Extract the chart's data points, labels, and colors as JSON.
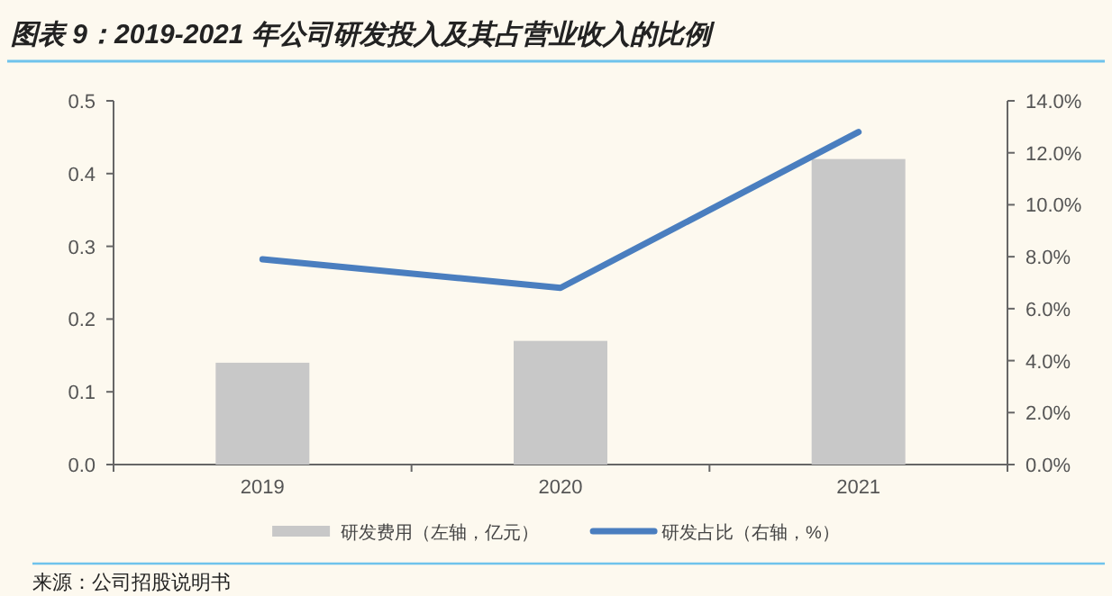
{
  "chart_data": {
    "type": "bar",
    "title": "图表 9：2019-2021 年公司研发投入及其占营业收入的比例",
    "categories": [
      "2019",
      "2020",
      "2021"
    ],
    "series": [
      {
        "name": "研发费用（左轴，亿元）",
        "color": "#c8c8c8",
        "values": [
          0.14,
          0.17,
          0.42
        ]
      },
      {
        "name": "研发占比（右轴，%）",
        "type": "line",
        "axis": "y2",
        "color": "#4a7ebf",
        "values": [
          7.9,
          6.8,
          12.8
        ]
      }
    ],
    "ylim": [
      0,
      0.5
    ],
    "yticks": [
      {
        "value": 0,
        "label": "0.0"
      },
      0.1,
      0.2,
      0.3,
      0.4,
      0.5
    ],
    "y2lim": [
      0,
      14
    ],
    "y2ticks": [
      {
        "value": 0,
        "label": "0.0%"
      },
      {
        "value": 2,
        "label": "2.0%"
      },
      {
        "value": 4,
        "label": "4.0%"
      },
      {
        "value": 6,
        "label": "6.0%"
      },
      {
        "value": 8,
        "label": "8.0%"
      },
      {
        "value": 10,
        "label": "10.0%"
      },
      {
        "value": 12,
        "label": "12.0%"
      },
      {
        "value": 14,
        "label": "14.0%"
      }
    ],
    "legend": "bottom",
    "annotations": [
      "来源：公司招股说明书"
    ]
  }
}
